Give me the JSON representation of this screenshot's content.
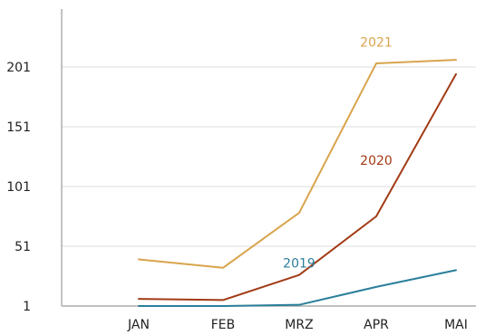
{
  "chart_data": {
    "type": "line",
    "categories": [
      "JAN",
      "FEB",
      "MRZ",
      "APR",
      "MAI"
    ],
    "x_tick_labels": [
      "JAN",
      "FEB",
      "MRZ",
      "APR",
      "MAI"
    ],
    "y_ticks": [
      1,
      51,
      101,
      151,
      201
    ],
    "y_tick_labels": [
      "1",
      "51",
      "101",
      "151",
      "201"
    ],
    "ylim": [
      1,
      251
    ],
    "grid": true,
    "legend": "inline labels",
    "title": "",
    "xlabel": "",
    "ylabel": "",
    "series": [
      {
        "name": "2019",
        "color": "#2a7f9a",
        "values": [
          1,
          1,
          2,
          17,
          31
        ],
        "label_at": [
          "MRZ",
          37
        ]
      },
      {
        "name": "2020",
        "color": "#a23b16",
        "values": [
          7,
          6,
          27,
          76,
          195
        ],
        "label_at": [
          "APR",
          123
        ]
      },
      {
        "name": "2021",
        "color": "#d9a44c",
        "values": [
          40,
          33,
          79,
          204,
          207
        ],
        "label_at": [
          "APR",
          222
        ]
      }
    ]
  }
}
